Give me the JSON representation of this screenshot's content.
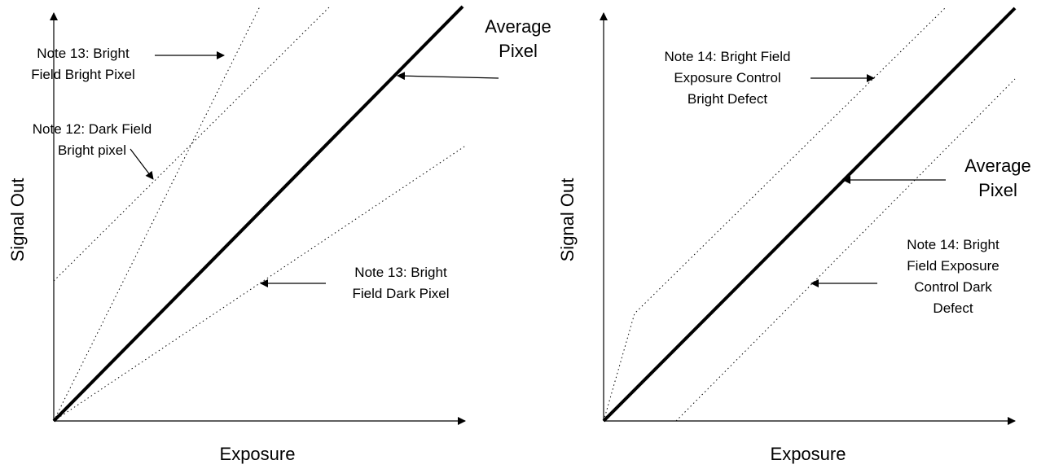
{
  "colors": {
    "ink": "#000000",
    "background": "#ffffff"
  },
  "left_panel": {
    "x_axis_label": "Exposure",
    "y_axis_label": "Signal Out",
    "average_label": [
      "Average",
      "Pixel"
    ],
    "note13_bright_label": [
      "Note 13: Bright",
      "Field Bright Pixel"
    ],
    "note12_label": [
      "Note 12: Dark Field",
      "Bright pixel"
    ],
    "note13_dark_label": [
      "Note 13: Bright",
      "Field Dark Pixel"
    ]
  },
  "right_panel": {
    "x_axis_label": "Exposure",
    "y_axis_label": "Signal Out",
    "average_label": [
      "Average",
      "Pixel"
    ],
    "note14_bright_label": [
      "Note 14: Bright Field",
      "Exposure Control",
      "Bright Defect"
    ],
    "note14_dark_label": [
      "Note 14: Bright",
      "Field Exposure",
      "Control Dark",
      "Defect"
    ]
  }
}
